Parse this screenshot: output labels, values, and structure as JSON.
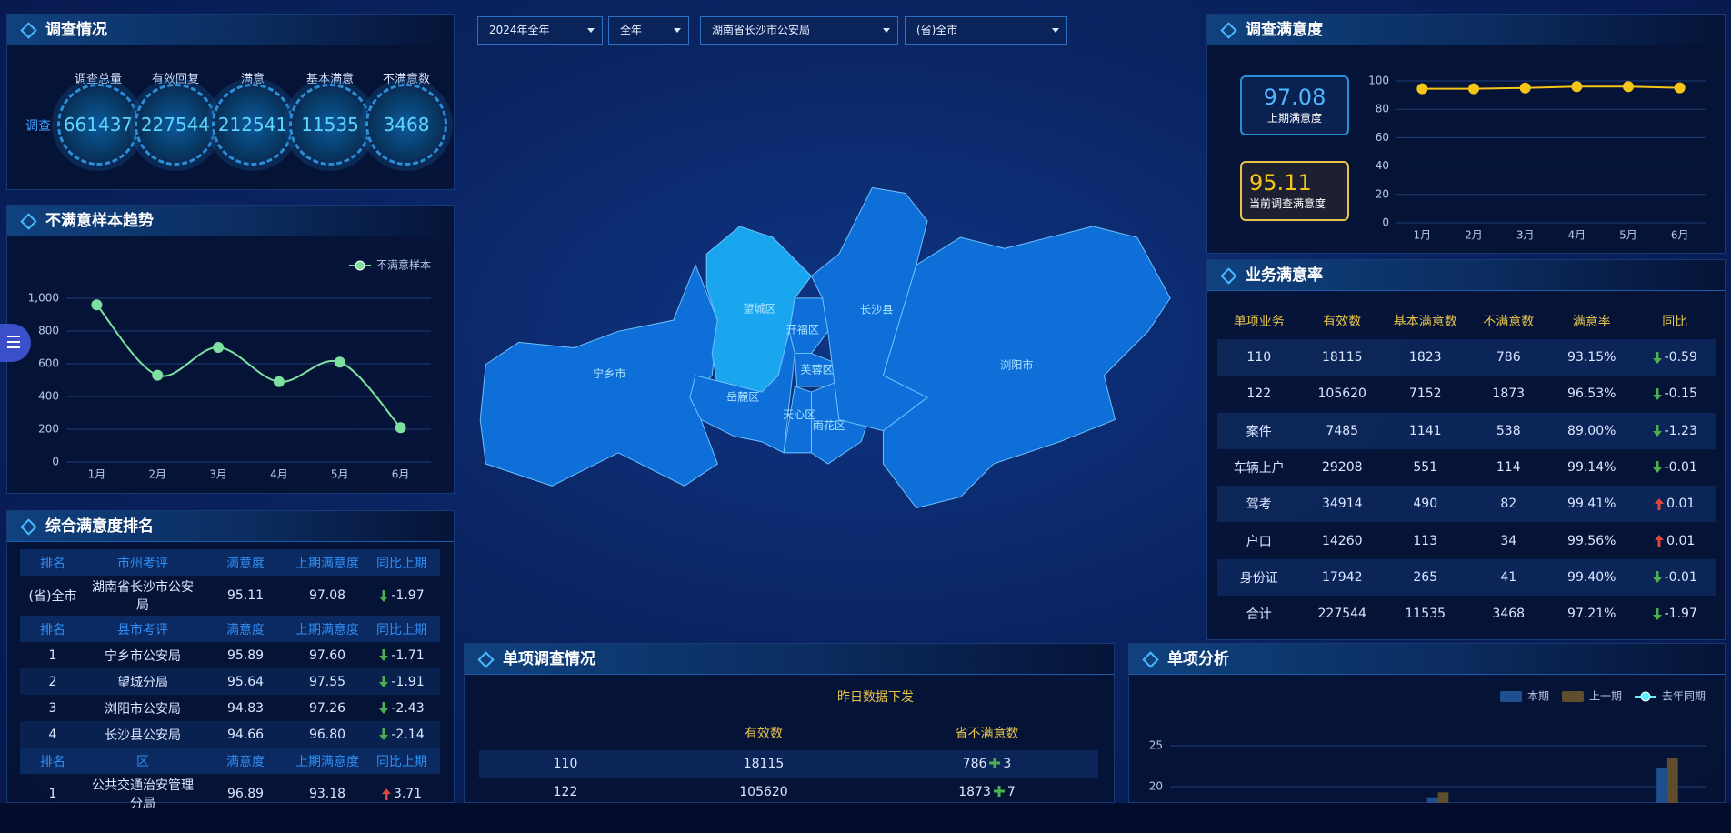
{
  "filters": [
    "2024年全年",
    "全年",
    "湖南省长沙市公安局",
    "(省)全市"
  ],
  "survey": {
    "title": "调查情况",
    "row_label": "调查",
    "labels": [
      "调查总量",
      "有效回复",
      "满意",
      "基本满意",
      "不满意数"
    ],
    "values": [
      661437,
      227544,
      212541,
      11535,
      3468
    ]
  },
  "ranking": {
    "title": "综合满意度排名",
    "sections": [
      {
        "header": [
          "排名",
          "市州考评",
          "满意度",
          "上期满意度",
          "同比上期"
        ],
        "rows": [
          [
            "(省)全市",
            "湖南省长沙市公安局",
            "95.11",
            "97.08",
            "-1.97"
          ]
        ]
      },
      {
        "header": [
          "排名",
          "县市考评",
          "满意度",
          "上期满意度",
          "同比上期"
        ],
        "rows": [
          [
            "1",
            "宁乡市公安局",
            "95.89",
            "97.60",
            "-1.71"
          ],
          [
            "2",
            "望城分局",
            "95.64",
            "97.55",
            "-1.91"
          ],
          [
            "3",
            "浏阳市公安局",
            "94.83",
            "97.26",
            "-2.43"
          ],
          [
            "4",
            "长沙县公安局",
            "94.66",
            "96.80",
            "-2.14"
          ]
        ]
      },
      {
        "header": [
          "排名",
          "区",
          "满意度",
          "上期满意度",
          "同比上期"
        ],
        "rows": [
          [
            "1",
            "公共交通治安管理分局",
            "96.89",
            "93.18",
            "3.71"
          ]
        ]
      }
    ]
  },
  "map": {
    "regions": [
      "望城区",
      "开福区",
      "长沙县",
      "宁乡市",
      "岳麓区",
      "芙蓉区",
      "天心区",
      "雨花区",
      "浏阳市"
    ]
  },
  "satisfaction": {
    "previous": {
      "value": 97.08,
      "label": "上期满意度"
    },
    "current": {
      "value": 95.11,
      "label": "当前调查满意度"
    }
  },
  "business": {
    "title": "业务满意率",
    "header": [
      "单项业务",
      "有效数",
      "基本满意数",
      "不满意数",
      "满意率",
      "同比"
    ],
    "rows": [
      [
        "110",
        "18115",
        "1823",
        "786",
        "93.15%",
        "-0.59"
      ],
      [
        "122",
        "105620",
        "7152",
        "1873",
        "96.53%",
        "-0.15"
      ],
      [
        "案件",
        "7485",
        "1141",
        "538",
        "89.00%",
        "-1.23"
      ],
      [
        "车辆上户",
        "29208",
        "551",
        "114",
        "99.14%",
        "-0.01"
      ],
      [
        "驾考",
        "34914",
        "490",
        "82",
        "99.41%",
        "0.01"
      ],
      [
        "户口",
        "14260",
        "113",
        "34",
        "99.56%",
        "0.01"
      ],
      [
        "身份证",
        "17942",
        "265",
        "41",
        "99.40%",
        "-0.01"
      ],
      [
        "合计",
        "227544",
        "11535",
        "3468",
        "97.21%",
        "-1.97"
      ]
    ]
  },
  "daily": {
    "title": "单项调查情况",
    "subtitle": "昨日数据下发",
    "header": [
      "有效数",
      "省不满意数"
    ],
    "rows": [
      [
        "110",
        "18115",
        "786",
        "3"
      ],
      [
        "122",
        "105620",
        "1873",
        "7"
      ]
    ]
  },
  "chart_data": [
    {
      "type": "line",
      "title": "不满意样本趋势",
      "categories": [
        "1月",
        "2月",
        "3月",
        "4月",
        "5月",
        "6月"
      ],
      "series": [
        {
          "name": "不满意样本",
          "color": "#7ee0a0",
          "values": [
            960,
            530,
            700,
            490,
            610,
            210
          ]
        }
      ],
      "ylim": [
        0,
        1000
      ],
      "yticks": [
        0,
        200,
        400,
        600,
        800,
        {
          "value": 1000,
          "label": "1,000"
        }
      ],
      "grid": true,
      "smooth": true,
      "legend": "top-right"
    },
    {
      "type": "line",
      "title": "调查满意度",
      "categories": [
        "1月",
        "2月",
        "3月",
        "4月",
        "5月",
        "6月"
      ],
      "values": [
        94.5,
        94.5,
        95,
        96,
        96,
        95.1
      ],
      "color": "#f5c518",
      "ylim": [
        0,
        100
      ],
      "yticks": [
        0,
        20,
        40,
        60,
        80,
        100
      ],
      "grid": true
    },
    {
      "type": "bar",
      "title": "单项分析",
      "categories": [
        null,
        null,
        null,
        null,
        null,
        null,
        null
      ],
      "series": [
        {
          "name": "本期",
          "color": "#1f4f8f",
          "values": [
            null,
            null,
            null,
            18.7,
            null,
            null,
            22.3
          ]
        },
        {
          "name": "上一期",
          "color": "#5e4e2c",
          "values": [
            null,
            null,
            null,
            19.3,
            null,
            null,
            23.5
          ]
        },
        {
          "name": "去年同期",
          "type": "line",
          "color": "#5ff0ff",
          "values": [
            null,
            null,
            null,
            null,
            null,
            null,
            null
          ]
        }
      ],
      "ylim": [
        18,
        27
      ],
      "yticks": [
        20,
        25
      ],
      "grid": true,
      "legend": "top-right"
    }
  ]
}
